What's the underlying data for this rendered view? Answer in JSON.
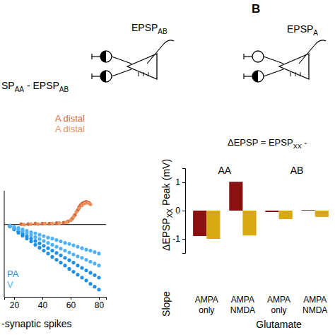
{
  "panel_labels": [
    "B"
  ],
  "schematics": [
    {
      "label": [
        {
          "text": "EPSP",
          "sub": "AB"
        }
      ]
    },
    {
      "label": [
        {
          "text": "EPSP",
          "sub": "A"
        }
      ]
    }
  ],
  "chart_data": [
    {
      "type": "scatter",
      "formula": [
        {
          "text": "SP",
          "sub": "AA"
        },
        {
          "text": " - EPSP",
          "sub": "AB"
        }
      ],
      "x_label": "-synaptic spikes",
      "xlim": [
        13,
        85
      ],
      "xticks": [
        20,
        40,
        60,
        80
      ],
      "ylim": [
        -1.5,
        0.7
      ],
      "tick_labels": "x",
      "hline": 0,
      "series": [
        {
          "name": "PA",
          "color": "#1e8fe6",
          "x": [
            17,
            20,
            23,
            26,
            29,
            32,
            35,
            38,
            41,
            44,
            47,
            50,
            53,
            56,
            59,
            62,
            65,
            68,
            71,
            74,
            77,
            80,
            17,
            20,
            23,
            26,
            29,
            32,
            35,
            38,
            41,
            44,
            47,
            50,
            53,
            56,
            59,
            62,
            65,
            68,
            71,
            74,
            77,
            80
          ],
          "values": [
            -0.04,
            -0.1,
            -0.17,
            -0.23,
            -0.29,
            -0.35,
            -0.42,
            -0.48,
            -0.54,
            -0.6,
            -0.67,
            -0.73,
            -0.79,
            -0.85,
            -0.92,
            -0.98,
            -1.04,
            -1.1,
            -1.16,
            -1.23,
            -1.29,
            -1.35,
            -0.03,
            -0.08,
            -0.14,
            -0.19,
            -0.24,
            -0.29,
            -0.34,
            -0.39,
            -0.44,
            -0.49,
            -0.54,
            -0.59,
            -0.64,
            -0.69,
            -0.74,
            -0.79,
            -0.85,
            -0.9,
            -0.95,
            -1.0,
            -1.05,
            -1.1
          ]
        },
        {
          "name": "V",
          "color": "#4fb2f5",
          "x": [
            17,
            20,
            23,
            26,
            29,
            32,
            35,
            38,
            41,
            44,
            47,
            50,
            53,
            56,
            59,
            62,
            65,
            68,
            71,
            74,
            77,
            80,
            17,
            20,
            23,
            26,
            29,
            32,
            35,
            38,
            41,
            44,
            47,
            50,
            53,
            56,
            59,
            62,
            65,
            68,
            71,
            74,
            77,
            80
          ],
          "values": [
            -0.03,
            -0.07,
            -0.1,
            -0.14,
            -0.18,
            -0.22,
            -0.26,
            -0.3,
            -0.34,
            -0.38,
            -0.42,
            -0.46,
            -0.5,
            -0.54,
            -0.58,
            -0.62,
            -0.66,
            -0.69,
            -0.73,
            -0.77,
            -0.81,
            -0.85,
            -0.02,
            -0.05,
            -0.07,
            -0.1,
            -0.13,
            -0.16,
            -0.18,
            -0.21,
            -0.24,
            -0.27,
            -0.29,
            -0.32,
            -0.35,
            -0.38,
            -0.4,
            -0.43,
            -0.46,
            -0.49,
            -0.52,
            -0.54,
            -0.57,
            -0.6
          ]
        },
        {
          "name": "A distal",
          "color": "#d2693a",
          "x": [
            25,
            30,
            35,
            40,
            45,
            50,
            55,
            58,
            61,
            63,
            65,
            66,
            67,
            68,
            69,
            70,
            71,
            72,
            73
          ],
          "values": [
            0.01,
            0.01,
            0.02,
            0.02,
            0.02,
            0.03,
            0.04,
            0.06,
            0.12,
            0.2,
            0.3,
            0.36,
            0.4,
            0.43,
            0.45,
            0.46,
            0.47,
            0.46,
            0.45
          ]
        },
        {
          "name": "A distal",
          "color": "#e8915f",
          "x": [
            27,
            32,
            37,
            42,
            47,
            52,
            57,
            60,
            62,
            64,
            66,
            68,
            70,
            72,
            74
          ],
          "values": [
            0.0,
            0.01,
            0.01,
            0.02,
            0.02,
            0.03,
            0.05,
            0.09,
            0.16,
            0.26,
            0.34,
            0.4,
            0.44,
            0.45,
            0.42
          ]
        }
      ]
    },
    {
      "type": "bar",
      "formula": [
        {
          "text": "ΔEPSP = EPSP",
          "sub": "XX"
        },
        {
          "text": " - "
        }
      ],
      "group_labels": [
        "AA",
        "AB"
      ],
      "y_label": [
        {
          "text": "Slope"
        },
        {
          "text": "ΔEPSP",
          "sub": "XX"
        },
        {
          "text": "Peak (mV)"
        }
      ],
      "x_label": "Glutamate",
      "categories": [
        "AMPA only",
        "AMPA NMDA",
        "AMPA only",
        "AMPA NMDA"
      ],
      "ylim": [
        -1.5,
        1.5
      ],
      "yticks": [
        -1,
        0,
        1
      ],
      "series": [
        {
          "color": "#8b1010",
          "values": [
            -0.9,
            1.02,
            -0.05,
            0.02
          ]
        },
        {
          "color": "#d9a914",
          "values": [
            -1.0,
            -0.88,
            -0.3,
            -0.22
          ]
        }
      ]
    }
  ]
}
